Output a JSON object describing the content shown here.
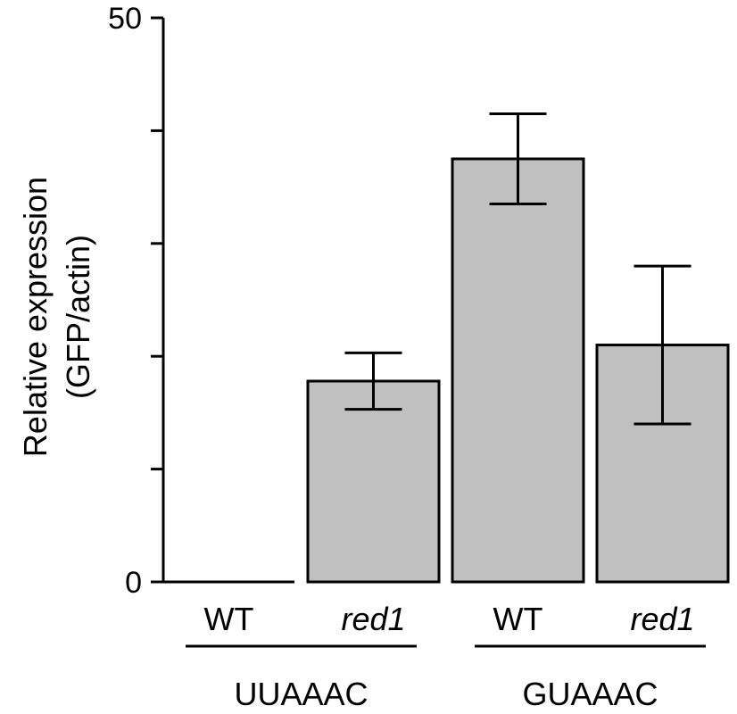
{
  "chart_data": {
    "type": "bar",
    "title": "",
    "xlabel": "",
    "ylabel_line1": "Relative expression",
    "ylabel_line2": "(GFP/actin)",
    "ylim": [
      0,
      50
    ],
    "yticks": [
      0,
      10,
      20,
      30,
      40,
      50
    ],
    "ytick_labels": [
      "0",
      "",
      "",
      "",
      "",
      "50"
    ],
    "categories": [
      {
        "label": "WT",
        "italic": false
      },
      {
        "label": "red1",
        "italic": true
      },
      {
        "label": "WT",
        "italic": false
      },
      {
        "label": "red1",
        "italic": true
      }
    ],
    "values": [
      0,
      17.8,
      37.5,
      21.0
    ],
    "errors": [
      0,
      2.5,
      4.0,
      7.0
    ],
    "groups": [
      {
        "label": "UUAAAC",
        "categories": [
          0,
          1
        ]
      },
      {
        "label": "GUAAAC",
        "categories": [
          2,
          3
        ]
      }
    ],
    "bar_color": "#c0c0c0",
    "grid": false,
    "legend": "none"
  }
}
